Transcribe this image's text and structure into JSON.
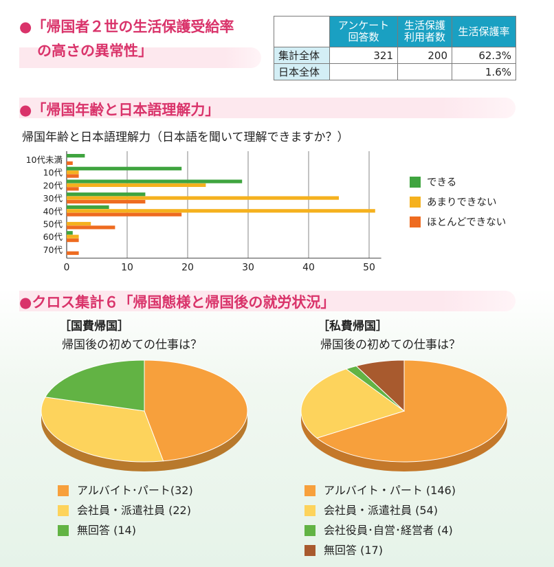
{
  "section1": {
    "bullet": "●",
    "title_line1": "「帰国者２世の生活保護受給率",
    "title_line2": "の高さの異常性」"
  },
  "stats_table": {
    "headers": [
      "アンケート\n回答数",
      "生活保護\n利用者数",
      "生活保護率"
    ],
    "rows": [
      {
        "label": "集計全体",
        "values": [
          "321",
          "200",
          "62.3%"
        ]
      },
      {
        "label": "日本全体",
        "values": [
          "",
          "",
          "1.6%"
        ]
      }
    ]
  },
  "section2": {
    "bullet": "●",
    "title": "「帰国年齢と日本語理解力」"
  },
  "section3": {
    "bullet": "●",
    "title": "クロス集計６「帰国態様と帰国後の就労状況」"
  },
  "colors": {
    "dekiru": "#3fa43f",
    "amari": "#f5b11e",
    "hotondo": "#ee6b20",
    "pie_orange": "#f7a03c",
    "pie_yellow": "#fdd35c",
    "pie_green": "#62b344",
    "pie_brown": "#a85a2e",
    "accent": "#d9336a"
  },
  "chart_data": [
    {
      "type": "bar",
      "orientation": "horizontal",
      "title": "帰国年齢と日本語理解力（日本語を聞いて理解できますか？）",
      "categories": [
        "10代未満",
        "10代",
        "20代",
        "30代",
        "40代",
        "50代",
        "60代",
        "70代"
      ],
      "series": [
        {
          "name": "できる",
          "values": [
            3,
            19,
            29,
            13,
            7,
            0,
            1,
            0
          ]
        },
        {
          "name": "あまりできない",
          "values": [
            0,
            2,
            23,
            45,
            51,
            4,
            2,
            0
          ]
        },
        {
          "name": "ほとんどできない",
          "values": [
            1,
            2,
            2,
            13,
            19,
            8,
            2,
            2
          ]
        }
      ],
      "xlim": [
        0,
        52
      ],
      "xticks": [
        "0",
        "10",
        "20",
        "30",
        "40",
        "50"
      ],
      "grid": true,
      "legend": "right"
    },
    {
      "type": "pie",
      "title": "［国費帰国］",
      "subtitle": "帰国後の初めての仕事は？",
      "slices": [
        {
          "label": "アルバイト･パート(32)",
          "value": 32
        },
        {
          "label": "会社員・派遣社員 (22)",
          "value": 22
        },
        {
          "label": "無回答 (14)",
          "value": 14
        }
      ]
    },
    {
      "type": "pie",
      "title": "［私費帰国］",
      "subtitle": "帰国後の初めての仕事は？",
      "slices": [
        {
          "label": "アルバイト・パート (146)",
          "value": 146
        },
        {
          "label": "会社員・派遣社員 (54)",
          "value": 54
        },
        {
          "label": "会社役員･自営･経営者 (4)",
          "value": 4
        },
        {
          "label": "無回答 (17)",
          "value": 17
        }
      ]
    }
  ]
}
